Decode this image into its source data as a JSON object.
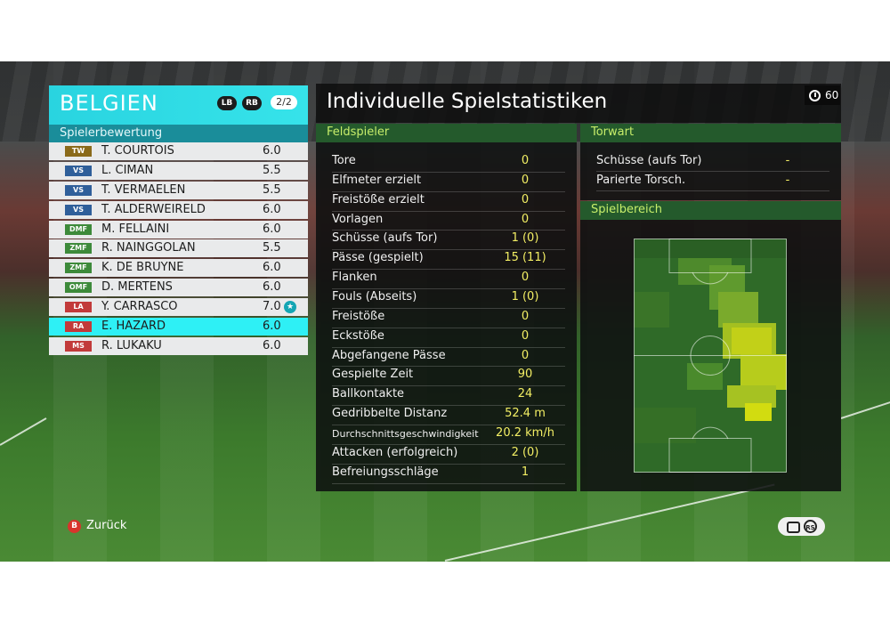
{
  "team": {
    "name": "BELGIEN",
    "lb_label": "LB",
    "rb_label": "RB",
    "page_indicator": "2/2",
    "rating_header": "Spielerbewertung"
  },
  "players": [
    {
      "pos": "TW",
      "pos_color": "#8a6a1a",
      "name": "T. COURTOIS",
      "rating": "6.0"
    },
    {
      "pos": "VS",
      "pos_color": "#2f5f9a",
      "name": "L. CIMAN",
      "rating": "5.5"
    },
    {
      "pos": "VS",
      "pos_color": "#2f5f9a",
      "name": "T. VERMAELEN",
      "rating": "5.5"
    },
    {
      "pos": "VS",
      "pos_color": "#2f5f9a",
      "name": "T. ALDERWEIRELD",
      "rating": "6.0"
    },
    {
      "pos": "DMF",
      "pos_color": "#3d8a3a",
      "name": "M. FELLAINI",
      "rating": "6.0"
    },
    {
      "pos": "ZMF",
      "pos_color": "#3d8a3a",
      "name": "R. NAINGGOLAN",
      "rating": "5.5"
    },
    {
      "pos": "ZMF",
      "pos_color": "#3d8a3a",
      "name": "K. DE BRUYNE",
      "rating": "6.0"
    },
    {
      "pos": "OMF",
      "pos_color": "#3d8a3a",
      "name": "D. MERTENS",
      "rating": "6.0"
    },
    {
      "pos": "LA",
      "pos_color": "#c23a3a",
      "name": "Y. CARRASCO",
      "rating": "7.0",
      "star": "★"
    },
    {
      "pos": "RA",
      "pos_color": "#c23a3a",
      "name": "E. HAZARD",
      "rating": "6.0",
      "selected": true
    },
    {
      "pos": "MS",
      "pos_color": "#c23a3a",
      "name": "R. LUKAKU",
      "rating": "6.0"
    }
  ],
  "stats": {
    "title": "Individuelle Spielstatistiken",
    "timer": "60",
    "field_header": "Feldspieler",
    "field_rows": [
      {
        "label": "Tore",
        "value": "0"
      },
      {
        "label": "Elfmeter erzielt",
        "value": "0"
      },
      {
        "label": "Freistöße erzielt",
        "value": "0"
      },
      {
        "label": "Vorlagen",
        "value": "0"
      },
      {
        "label": "Schüsse (aufs Tor)",
        "value": "1 (0)"
      },
      {
        "label": "Pässe (gespielt)",
        "value": "15 (11)"
      },
      {
        "label": "Flanken",
        "value": "0"
      },
      {
        "label": "Fouls (Abseits)",
        "value": "1 (0)"
      },
      {
        "label": "Freistöße",
        "value": "0"
      },
      {
        "label": "Eckstöße",
        "value": "0"
      },
      {
        "label": "Abgefangene Pässe",
        "value": "0"
      },
      {
        "label": "Gespielte Zeit",
        "value": "90"
      },
      {
        "label": "Ballkontakte",
        "value": "24"
      },
      {
        "label": "Gedribbelte Distanz",
        "value": "52.4 m"
      },
      {
        "label": "Durchschnittsgeschwindigkeit",
        "value": "20.2 km/h"
      },
      {
        "label": "Attacken (erfolgreich)",
        "value": "2 (0)"
      },
      {
        "label": "Befreiungsschläge",
        "value": "1"
      }
    ],
    "gk_header": "Torwart",
    "gk_rows": [
      {
        "label": "Schüsse (aufs Tor)",
        "value": "-"
      },
      {
        "label": "Parierte Torsch.",
        "value": "-"
      }
    ],
    "area_header": "Spielbereich"
  },
  "footer": {
    "back_button": "B",
    "back_label": "Zurück",
    "rs_label": "RS"
  },
  "colors": {
    "team_accent": "#2ee0ea",
    "stat_value": "#f2ee64",
    "panel_header_green": "#245a2c"
  }
}
